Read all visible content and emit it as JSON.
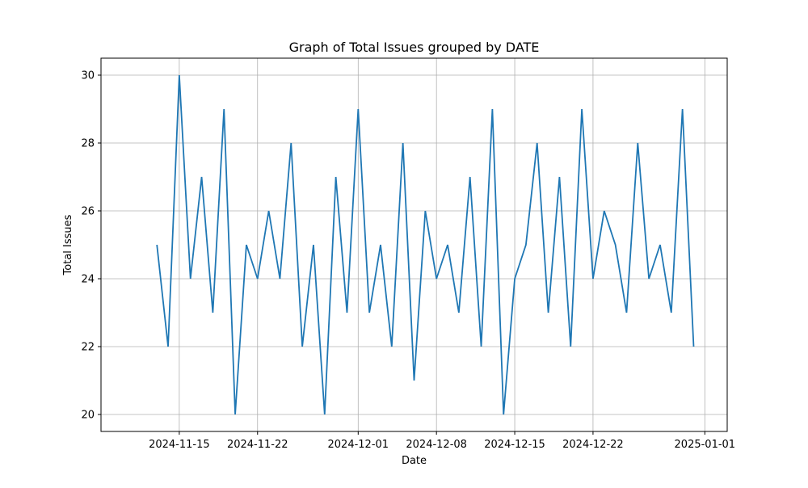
{
  "chart_data": {
    "type": "line",
    "title": "Graph of Total Issues grouped by DATE",
    "xlabel": "Date",
    "ylabel": "Total Issues",
    "grid": true,
    "xlim": [
      "2024-11-08",
      "2025-01-03"
    ],
    "ylim": [
      19.5,
      30.5
    ],
    "x_ticks": [
      "2024-11-15",
      "2024-11-22",
      "2024-12-01",
      "2024-12-08",
      "2024-12-15",
      "2024-12-22",
      "2025-01-01"
    ],
    "y_ticks": [
      20,
      22,
      24,
      26,
      28,
      30
    ],
    "line_color": "#1f77b4",
    "x": [
      "2024-11-13",
      "2024-11-14",
      "2024-11-15",
      "2024-11-16",
      "2024-11-17",
      "2024-11-18",
      "2024-11-19",
      "2024-11-20",
      "2024-11-21",
      "2024-11-22",
      "2024-11-23",
      "2024-11-24",
      "2024-11-25",
      "2024-11-26",
      "2024-11-27",
      "2024-11-28",
      "2024-11-29",
      "2024-11-30",
      "2024-12-01",
      "2024-12-02",
      "2024-12-03",
      "2024-12-04",
      "2024-12-05",
      "2024-12-06",
      "2024-12-07",
      "2024-12-08",
      "2024-12-09",
      "2024-12-10",
      "2024-12-11",
      "2024-12-12",
      "2024-12-13",
      "2024-12-14",
      "2024-12-15",
      "2024-12-16",
      "2024-12-17",
      "2024-12-18",
      "2024-12-19",
      "2024-12-20",
      "2024-12-21",
      "2024-12-22",
      "2024-12-23",
      "2024-12-24",
      "2024-12-25",
      "2024-12-26",
      "2024-12-27",
      "2024-12-28",
      "2024-12-29",
      "2024-12-30",
      "2024-12-31"
    ],
    "series": [
      {
        "values": [
          25,
          22,
          30,
          24,
          27,
          23,
          29,
          20,
          25,
          24,
          26,
          24,
          28,
          22,
          25,
          20,
          27,
          23,
          29,
          23,
          25,
          22,
          28,
          21,
          26,
          24,
          25,
          23,
          27,
          22,
          29,
          20,
          24,
          25,
          28,
          23,
          27,
          22,
          29,
          24,
          26,
          25,
          23,
          28,
          24,
          25,
          23,
          29,
          22
        ]
      }
    ]
  }
}
